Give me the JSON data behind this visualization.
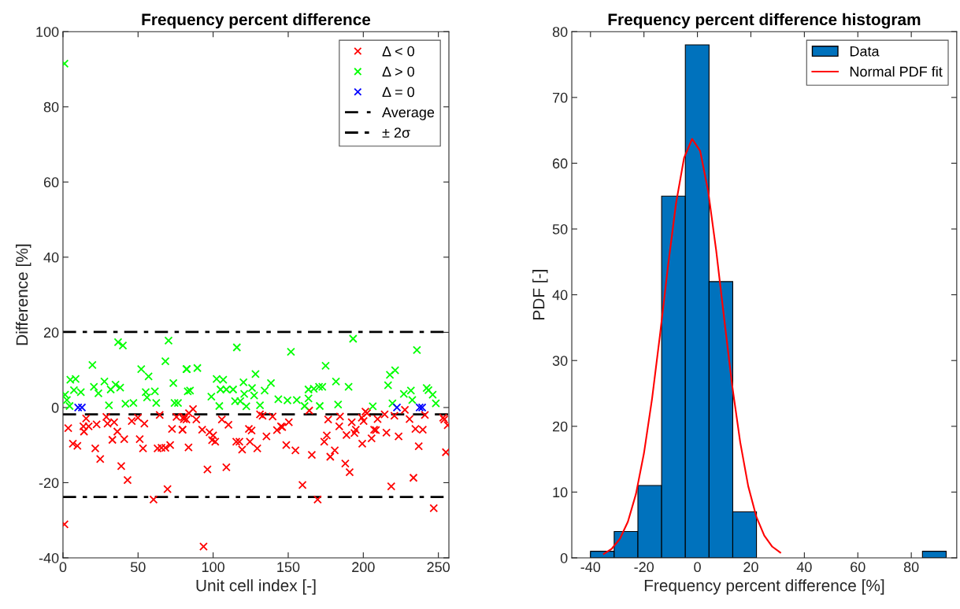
{
  "chart_data": [
    {
      "type": "scatter",
      "title": "Frequency percent difference",
      "xlabel": "Unit cell index [-]",
      "ylabel": "Difference [%]",
      "xlim": [
        0,
        257
      ],
      "xticks": [
        0,
        50,
        100,
        150,
        200,
        250
      ],
      "ylim": [
        -40,
        100
      ],
      "yticks": [
        -40,
        -20,
        0,
        20,
        40,
        60,
        80,
        100
      ],
      "grid": false,
      "legend": "top right",
      "marker": "cross",
      "series": [
        {
          "name": "Δ < 0",
          "color": "#ff0000",
          "x": [
            3.5,
            15.4,
            13.6,
            17.1,
            14.0,
            22.4,
            28.9,
            29.7,
            34.1,
            36.2,
            32.9,
            40.8,
            45.8,
            49.9,
            54.2,
            64.4,
            75.6,
            80.5,
            82.2,
            72.6,
            79.6,
            51.1,
            53.3,
            6.6,
            9.6,
            21.5,
            24.8,
            38.8,
            43.0,
            63.0,
            65.6,
            68.2,
            71.4,
            69.6,
            60.3,
            1,
            86.6,
            83.9,
            80.5,
            88.8,
            79.6,
            92.7,
            83.6,
            97.6,
            100.0,
            99.3,
            101.4,
            105.8,
            110.2,
            96.2,
            108.8,
            93.6,
            115.4,
            117.5,
            119.3,
            123.8,
            125.6,
            124.5,
            129.4,
            131.2,
            132.9,
            139.6,
            135.5,
            142.5,
            145.2,
            146.0,
            150.4,
            148.7,
            154.8,
            159.5,
            164.0,
            176.6,
            184.5,
            184.0,
            175.7,
            174.0,
            165.7,
            181.0,
            178.0,
            192.3,
            188.8,
            195.0,
            194.1,
            199.0,
            201.4,
            202.5,
            200.2,
            209.5,
            199.3,
            205.5,
            207.2,
            208.4,
            214.2,
            215.4,
            220.7,
            223.5,
            227.7,
            230.8,
            234.7,
            239.6,
            241.0,
            236.9,
            188.0,
            190.9,
            218.6,
            233.4,
            169.6,
            246.9,
            253.2,
            253.9,
            256.2,
            255.0
          ],
          "values": [
            -5.5,
            -2.9,
            -5.0,
            -5.0,
            -6.4,
            -4.5,
            -2.5,
            -4.3,
            -3.9,
            -6.4,
            -8.6,
            -8.4,
            -3.6,
            -2.7,
            -4.3,
            -2.0,
            -2.5,
            -3.1,
            -3.2,
            -5.7,
            -5.9,
            -8.4,
            -10.9,
            -9.6,
            -10.2,
            -10.9,
            -13.7,
            -15.6,
            -19.3,
            -10.9,
            -10.7,
            -10.7,
            -10.0,
            -21.7,
            -24.5,
            -31.1,
            -0.4,
            -1.5,
            -2.5,
            -3.2,
            -5.9,
            -5.9,
            -10.6,
            -6.6,
            -7.4,
            -8.7,
            -9.1,
            -3.2,
            -4.6,
            -16.5,
            -15.9,
            -37.0,
            -9.1,
            -9.1,
            -11.2,
            -5.7,
            -6.1,
            -9.1,
            -10.9,
            -1.8,
            -2.2,
            -2.4,
            -7.7,
            -6.0,
            -5.0,
            -5.2,
            -3.9,
            -10.0,
            -11.4,
            -20.6,
            -0.8,
            -3.2,
            -2.4,
            -5.0,
            -7.4,
            -9.1,
            -12.6,
            -11.4,
            -13.1,
            -3.9,
            -7.3,
            -5.9,
            -6.8,
            -2.7,
            -1.1,
            -1.5,
            -3.6,
            -3.1,
            -9.6,
            -8.2,
            -5.9,
            -6.0,
            -1.8,
            -6.7,
            -2.2,
            -7.7,
            -0.6,
            -3.1,
            -5.7,
            -5.9,
            -2.0,
            -10.3,
            -14.9,
            -17.2,
            -21.0,
            -18.7,
            -24.5,
            -26.8,
            -2.7,
            -3.2,
            -4.7,
            -11.9
          ]
        },
        {
          "name": "Δ > 0",
          "color": "#00ff00",
          "x": [
            1,
            36.7,
            39.9,
            70.3,
            19.6,
            52.1,
            57.0,
            68.2,
            82.2,
            4.9,
            8.4,
            27.6,
            35.0,
            38.1,
            31.8,
            73.5,
            20.6,
            23.6,
            7.3,
            11.9,
            55.1,
            56.0,
            61.2,
            1.4,
            2.6,
            4.4,
            30.6,
            41.6,
            46.9,
            62.1,
            74.3,
            76.6,
            83.1,
            115.8,
            151.8,
            82.5,
            89.5,
            102.3,
            106.7,
            128.2,
            120.2,
            138.5,
            84.6,
            104.9,
            108.8,
            113.3,
            125.9,
            134.3,
            120.7,
            127.3,
            98.8,
            114.6,
            118.1,
            122.1,
            104.1,
            131.2,
            143.4,
            149.5,
            155.7,
            160.9,
            193.2,
            235.7,
            174.9,
            221.2,
            217.7,
            181.8,
            216.5,
            190.2,
            163.5,
            167.0,
            170.5,
            172.7,
            227.0,
            231.7,
            242.2,
            243.4,
            246.2,
            232.6,
            248.3,
            163.5,
            171.0,
            183.2,
            206.3,
            219.4
          ],
          "values": [
            91.5,
            17.4,
            16.5,
            17.8,
            11.3,
            10.2,
            8.3,
            12.3,
            10.2,
            7.4,
            7.6,
            6.9,
            6.1,
            5.3,
            4.8,
            6.5,
            5.5,
            3.8,
            4.6,
            4.1,
            4.1,
            2.7,
            4.3,
            3.4,
            2.0,
            0.4,
            0.6,
            1.0,
            1.2,
            1.2,
            1.2,
            1.2,
            4.3,
            16.0,
            14.8,
            10.2,
            10.5,
            7.6,
            7.4,
            8.9,
            6.7,
            6.5,
            4.5,
            4.8,
            4.8,
            4.8,
            5.2,
            4.5,
            3.6,
            3.2,
            2.9,
            1.7,
            1.7,
            0.3,
            0.4,
            0.6,
            2.2,
            1.9,
            2.0,
            0.4,
            18.3,
            15.3,
            11.1,
            9.9,
            8.7,
            6.9,
            5.9,
            5.5,
            4.8,
            5.0,
            5.5,
            5.5,
            3.6,
            4.5,
            5.2,
            4.6,
            3.4,
            2.0,
            1.1,
            2.4,
            0.4,
            0.8,
            0.3,
            1.1
          ]
        },
        {
          "name": "Δ = 0",
          "color": "#0000ff",
          "x": [
            10.1,
            12.6,
            222.4,
            237.5,
            239.2
          ],
          "values": [
            0,
            0,
            0,
            0,
            0
          ]
        }
      ],
      "ref_lines": [
        {
          "axis": "y",
          "value": -1.8,
          "label": "Average",
          "color": "#000000",
          "line_style": "dashed"
        },
        {
          "axis": "y",
          "value": 20.1,
          "label": "± 2σ",
          "color": "#000000",
          "line_style": "dashdot"
        },
        {
          "axis": "y",
          "value": -23.8,
          "color": "#000000",
          "line_style": "dashdot"
        }
      ]
    },
    {
      "type": "histogram",
      "title": "Frequency percent difference histogram",
      "xlabel": "Frequency percent difference [%]",
      "ylabel": "PDF [-]",
      "xlim": [
        -47,
        97
      ],
      "xticks": [
        -40,
        -20,
        0,
        20,
        40,
        60,
        80
      ],
      "ylim": [
        0,
        80
      ],
      "yticks": [
        0,
        10,
        20,
        30,
        40,
        50,
        60,
        70,
        80
      ],
      "grid": false,
      "legend": "top right",
      "bins": [
        -40,
        -31.13,
        -22.26,
        -13.39,
        -4.52,
        4.35,
        13.22,
        22.09,
        30.96,
        39.83,
        48.7,
        57.57,
        66.44,
        75.31,
        84.18,
        93.05
      ],
      "series": [
        {
          "name": "Data",
          "type": "histogram",
          "color": "#0072bd",
          "values": [
            1,
            4,
            11,
            55,
            78,
            42,
            7,
            0,
            0,
            0,
            0,
            0,
            0,
            0,
            1
          ]
        },
        {
          "name": "Normal PDF fit",
          "type": "line",
          "color": "#ff0000",
          "x": [
            -35,
            -32,
            -29,
            -26,
            -23,
            -20,
            -17,
            -14,
            -11,
            -8,
            -5,
            -2,
            1,
            4,
            7,
            10,
            13,
            16,
            19,
            22,
            25,
            28,
            31
          ],
          "values": [
            0.6,
            1.4,
            2.9,
            5.5,
            9.7,
            15.9,
            24.1,
            33.9,
            44.4,
            53.9,
            60.8,
            63.7,
            61.9,
            55.8,
            46.8,
            36.4,
            26.2,
            17.6,
            10.9,
            6.3,
            3.4,
            1.7,
            0.8
          ]
        }
      ]
    }
  ]
}
